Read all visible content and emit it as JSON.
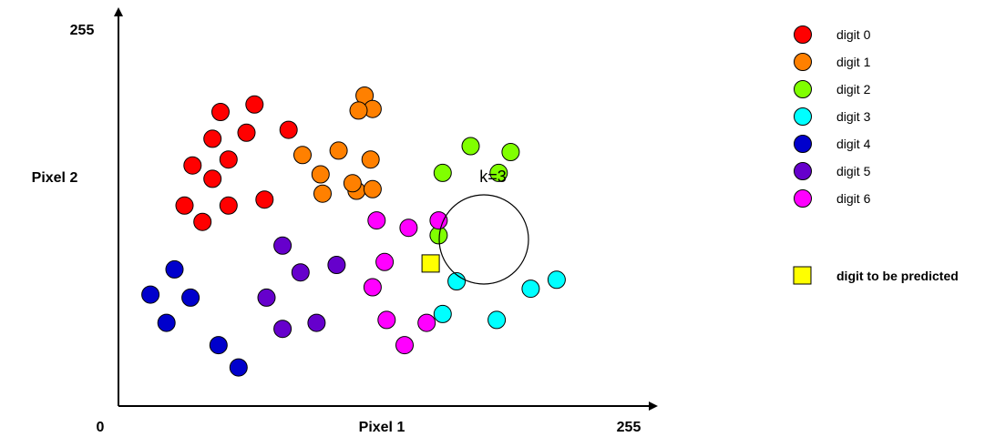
{
  "axes": {
    "x_label": "Pixel 1",
    "y_label": "Pixel 2",
    "origin_label": "0",
    "x_max_label": "255",
    "y_max_label": "255"
  },
  "neighborhood_label": "k=3",
  "legend": {
    "classes": [
      {
        "label": "digit 0",
        "color": "#ff0000"
      },
      {
        "label": "digit 1",
        "color": "#ff8000"
      },
      {
        "label": "digit 2",
        "color": "#80ff00"
      },
      {
        "label": "digit 3",
        "color": "#00ffff"
      },
      {
        "label": "digit 4",
        "color": "#0000cc"
      },
      {
        "label": "digit 5",
        "color": "#6600cc"
      },
      {
        "label": "digit 6",
        "color": "#ff00ff"
      }
    ],
    "query": {
      "label": "digit to be predicted",
      "color": "#ffff00"
    }
  },
  "chart_data": {
    "type": "scatter",
    "xlim": [
      0,
      255
    ],
    "ylim": [
      0,
      255
    ],
    "series": [
      {
        "name": "digit 0",
        "color": "#ff0000",
        "points": [
          [
            51,
            198
          ],
          [
            68,
            203
          ],
          [
            47,
            180
          ],
          [
            64,
            184
          ],
          [
            85,
            186
          ],
          [
            37,
            162
          ],
          [
            55,
            166
          ],
          [
            47,
            153
          ],
          [
            33,
            135
          ],
          [
            55,
            135
          ],
          [
            73,
            139
          ],
          [
            42,
            124
          ]
        ]
      },
      {
        "name": "digit 1",
        "color": "#ff8000",
        "points": [
          [
            123,
            209
          ],
          [
            127,
            200
          ],
          [
            120,
            199
          ],
          [
            119,
            145
          ],
          [
            102,
            143
          ],
          [
            92,
            169
          ],
          [
            110,
            172
          ],
          [
            126,
            166
          ],
          [
            101,
            156
          ],
          [
            117,
            150
          ],
          [
            127,
            146
          ]
        ]
      },
      {
        "name": "digit 2",
        "color": "#80ff00",
        "points": [
          [
            176,
            175
          ],
          [
            196,
            171
          ],
          [
            162,
            157
          ],
          [
            190,
            157
          ],
          [
            160,
            115
          ]
        ]
      },
      {
        "name": "digit 3",
        "color": "#00ffff",
        "points": [
          [
            169,
            84
          ],
          [
            206,
            79
          ],
          [
            162,
            62
          ],
          [
            219,
            85
          ],
          [
            189,
            58
          ]
        ]
      },
      {
        "name": "digit 4",
        "color": "#0000cc",
        "points": [
          [
            28,
            92
          ],
          [
            16,
            75
          ],
          [
            36,
            73
          ],
          [
            24,
            56
          ],
          [
            50,
            41
          ],
          [
            60,
            26
          ]
        ]
      },
      {
        "name": "digit 5",
        "color": "#6600cc",
        "points": [
          [
            82,
            108
          ],
          [
            91,
            90
          ],
          [
            109,
            95
          ],
          [
            74,
            73
          ],
          [
            82,
            52
          ],
          [
            99,
            56
          ]
        ]
      },
      {
        "name": "digit 6",
        "color": "#ff00ff",
        "points": [
          [
            129,
            125
          ],
          [
            145,
            120
          ],
          [
            160,
            125
          ],
          [
            133,
            97
          ],
          [
            127,
            80
          ],
          [
            134,
            58
          ],
          [
            154,
            56
          ],
          [
            143,
            41
          ]
        ]
      }
    ],
    "query_point": [
      156,
      96
    ],
    "k": 3
  }
}
